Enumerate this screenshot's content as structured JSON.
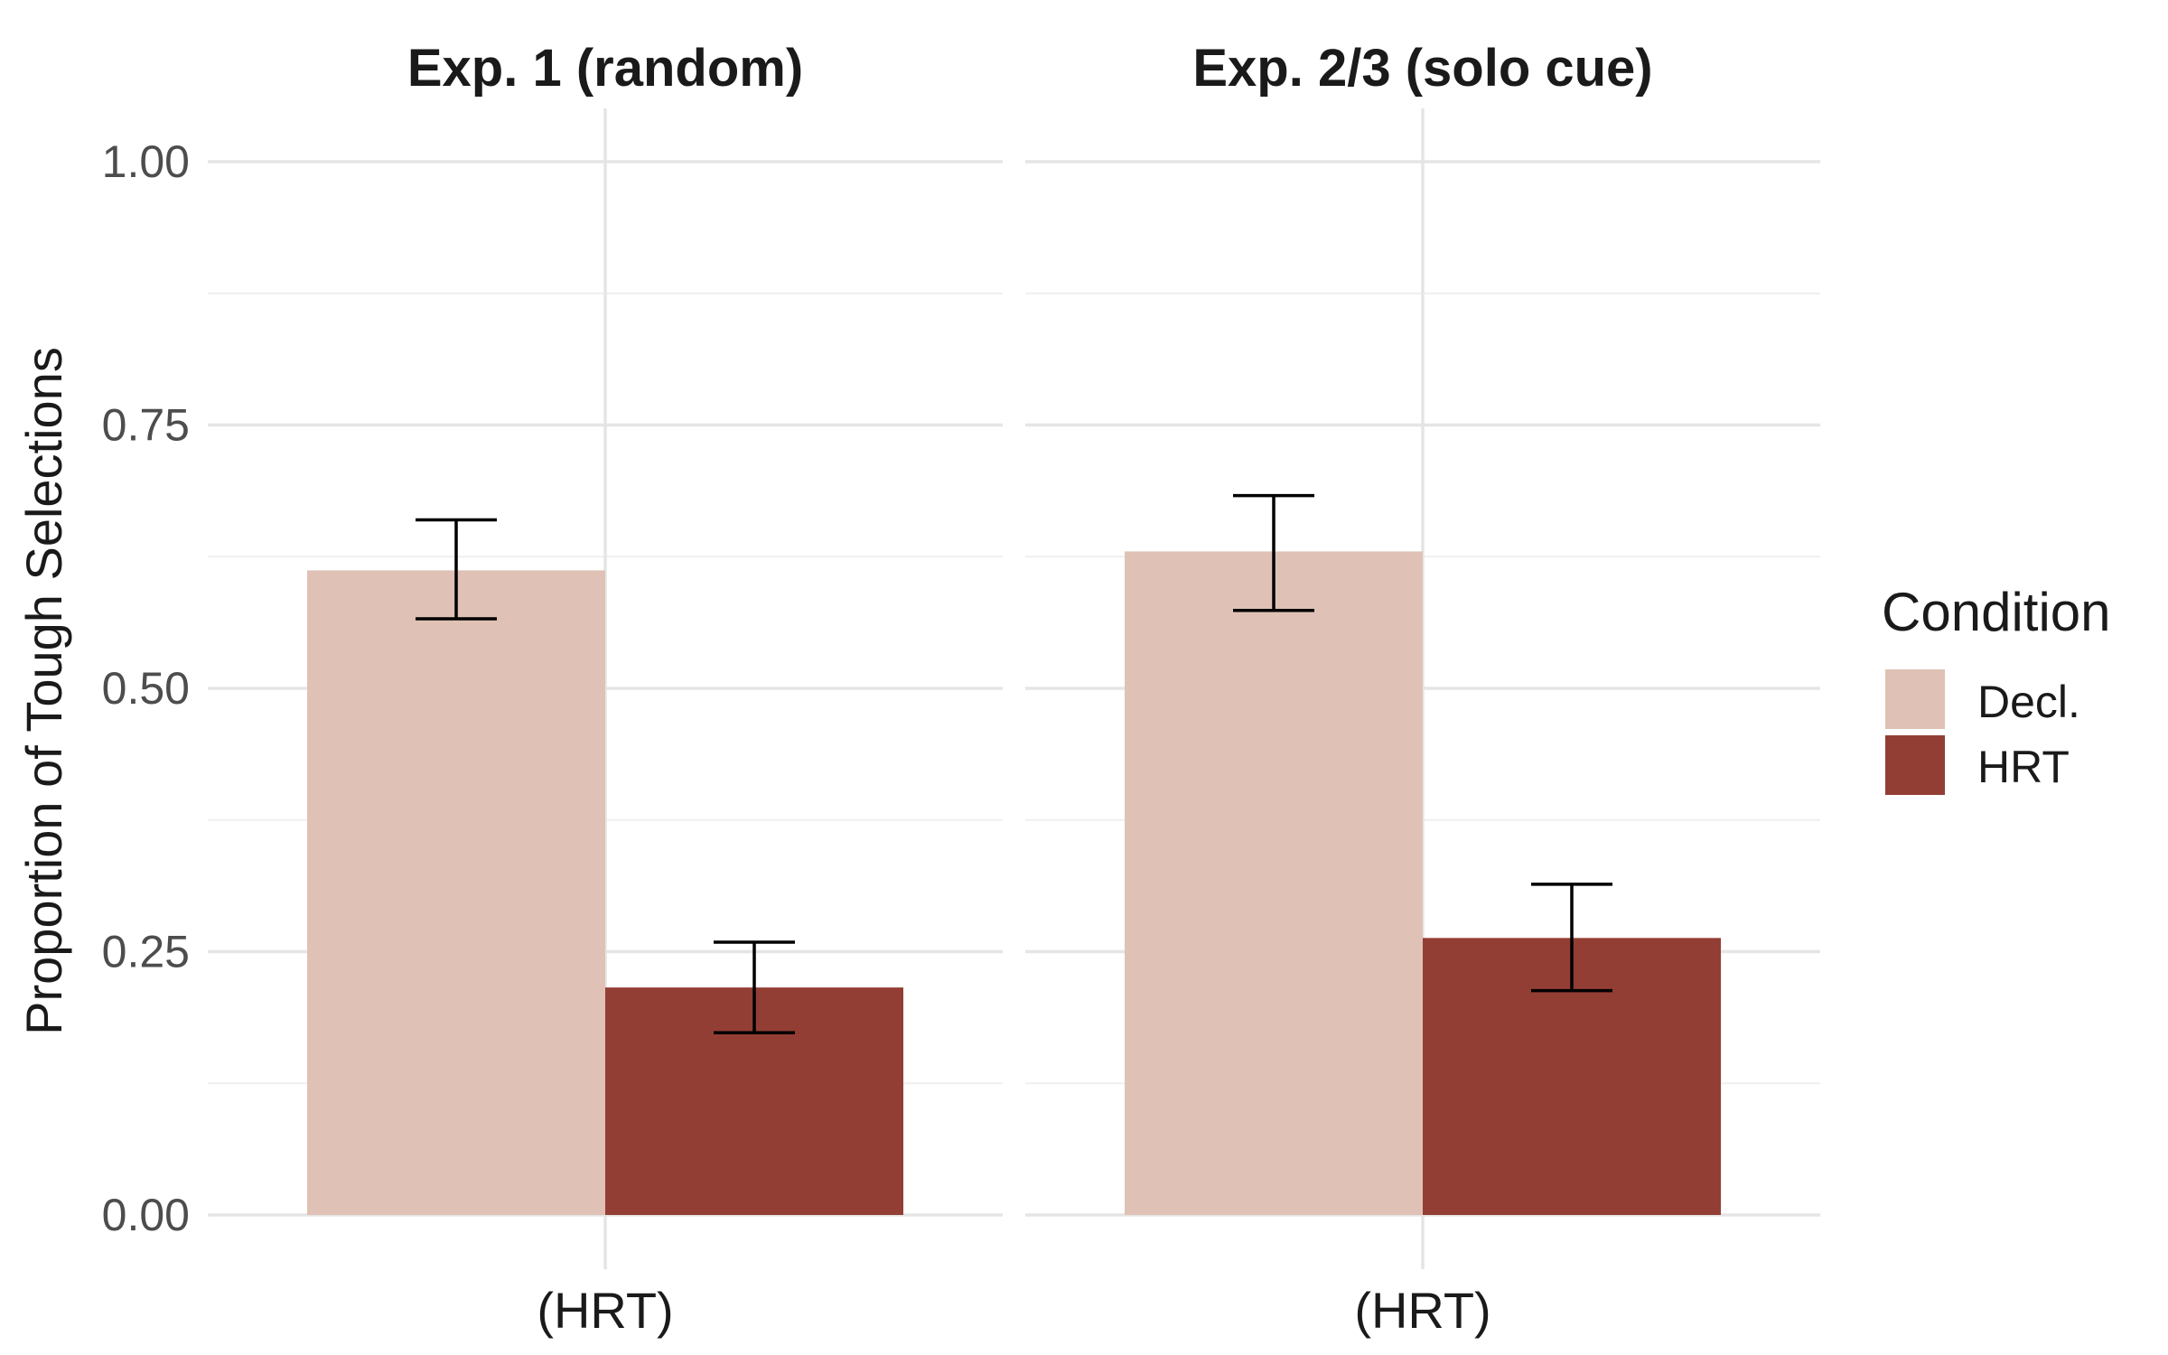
{
  "chart_data": {
    "type": "bar",
    "ylabel": "Proportion of Tough Selections",
    "xlabel": "",
    "ylim": [
      0,
      1.05
    ],
    "y_ticks": [
      "0.00",
      "0.25",
      "0.50",
      "0.75",
      "1.00"
    ],
    "grid": true,
    "legend": {
      "title": "Condition",
      "placement": "right",
      "entries": [
        "Decl.",
        "HRT"
      ]
    },
    "colors": {
      "Decl.": "#dfc2b5",
      "HRT": "#933e34"
    },
    "panels": [
      {
        "title": "Exp. 1 (random)",
        "categories": [
          "(HRT)"
        ],
        "series": [
          {
            "name": "Decl.",
            "values": [
              0.612
            ],
            "error_low": [
              0.566
            ],
            "error_high": [
              0.66
            ]
          },
          {
            "name": "HRT",
            "values": [
              0.216
            ],
            "error_low": [
              0.173
            ],
            "error_high": [
              0.259
            ]
          }
        ]
      },
      {
        "title": "Exp. 2/3 (solo cue)",
        "categories": [
          "(HRT)"
        ],
        "series": [
          {
            "name": "Decl.",
            "values": [
              0.63
            ],
            "error_low": [
              0.574
            ],
            "error_high": [
              0.683
            ]
          },
          {
            "name": "HRT",
            "values": [
              0.263
            ],
            "error_low": [
              0.213
            ],
            "error_high": [
              0.314
            ]
          }
        ]
      }
    ]
  }
}
